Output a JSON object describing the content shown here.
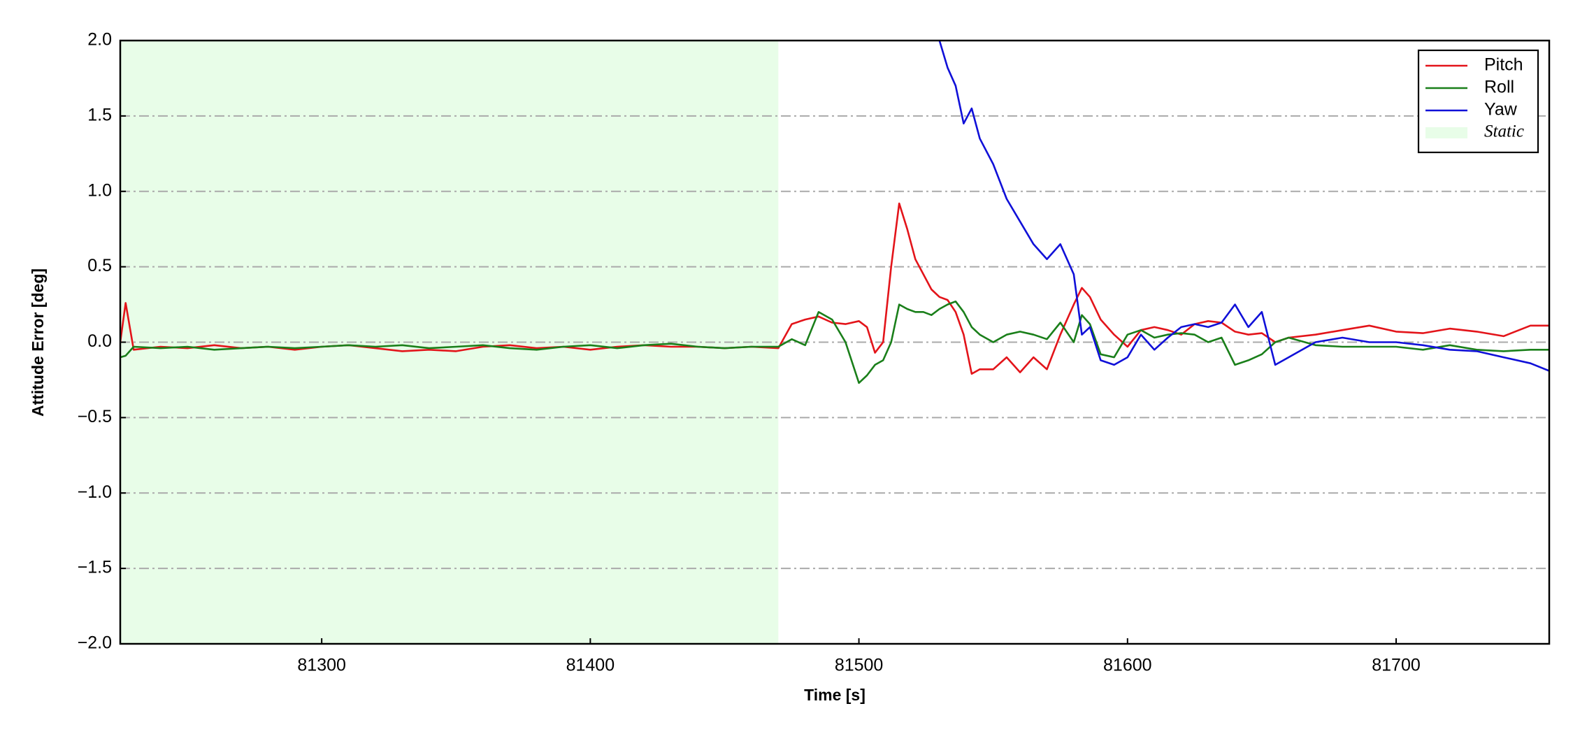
{
  "chart_data": {
    "type": "line",
    "xlabel": "Time [s]",
    "ylabel": "Attitude Error [deg]",
    "x": [
      81225,
      81227,
      81230,
      81240,
      81250,
      81260,
      81270,
      81280,
      81290,
      81300,
      81310,
      81320,
      81330,
      81340,
      81350,
      81360,
      81370,
      81380,
      81390,
      81400,
      81410,
      81420,
      81430,
      81440,
      81450,
      81460,
      81470,
      81475,
      81480,
      81485,
      81490,
      81495,
      81500,
      81503,
      81506,
      81509,
      81512,
      81515,
      81518,
      81521,
      81524,
      81527,
      81530,
      81533,
      81536,
      81539,
      81542,
      81545,
      81550,
      81555,
      81560,
      81565,
      81570,
      81575,
      81580,
      81583,
      81586,
      81590,
      81595,
      81600,
      81605,
      81610,
      81615,
      81620,
      81625,
      81630,
      81635,
      81640,
      81645,
      81650,
      81655,
      81660,
      81670,
      81680,
      81690,
      81700,
      81710,
      81720,
      81730,
      81740,
      81750,
      81757
    ],
    "series": [
      {
        "name": "Pitch",
        "color": "#e3141a",
        "values": [
          0.0,
          0.26,
          -0.05,
          -0.03,
          -0.04,
          -0.02,
          -0.04,
          -0.03,
          -0.05,
          -0.03,
          -0.02,
          -0.04,
          -0.06,
          -0.05,
          -0.06,
          -0.03,
          -0.02,
          -0.04,
          -0.03,
          -0.05,
          -0.03,
          -0.02,
          -0.03,
          -0.03,
          -0.04,
          -0.03,
          -0.04,
          0.12,
          0.15,
          0.17,
          0.13,
          0.12,
          0.14,
          0.1,
          -0.07,
          0.0,
          0.5,
          0.92,
          0.75,
          0.55,
          0.45,
          0.35,
          0.3,
          0.28,
          0.2,
          0.05,
          -0.21,
          -0.18,
          -0.18,
          -0.1,
          -0.2,
          -0.1,
          -0.18,
          0.05,
          0.25,
          0.36,
          0.3,
          0.15,
          0.05,
          -0.03,
          0.08,
          0.1,
          0.08,
          0.05,
          0.12,
          0.14,
          0.13,
          0.07,
          0.05,
          0.06,
          0.0,
          0.03,
          0.05,
          0.08,
          0.11,
          0.07,
          0.06,
          0.09,
          0.07,
          0.04,
          0.11,
          0.11
        ]
      },
      {
        "name": "Roll",
        "color": "#1a7f1a",
        "values": [
          -0.1,
          -0.09,
          -0.03,
          -0.04,
          -0.03,
          -0.05,
          -0.04,
          -0.03,
          -0.04,
          -0.03,
          -0.02,
          -0.03,
          -0.02,
          -0.04,
          -0.03,
          -0.02,
          -0.04,
          -0.05,
          -0.03,
          -0.02,
          -0.04,
          -0.02,
          -0.01,
          -0.03,
          -0.04,
          -0.03,
          -0.03,
          0.02,
          -0.02,
          0.2,
          0.15,
          0.0,
          -0.27,
          -0.22,
          -0.15,
          -0.12,
          0.0,
          0.25,
          0.22,
          0.2,
          0.2,
          0.18,
          0.22,
          0.25,
          0.27,
          0.2,
          0.1,
          0.05,
          0.0,
          0.05,
          0.07,
          0.05,
          0.02,
          0.13,
          0.0,
          0.18,
          0.12,
          -0.08,
          -0.1,
          0.05,
          0.08,
          0.03,
          0.05,
          0.06,
          0.05,
          0.0,
          0.03,
          -0.15,
          -0.12,
          -0.08,
          0.0,
          0.03,
          -0.02,
          -0.03,
          -0.03,
          -0.03,
          -0.05,
          -0.02,
          -0.05,
          -0.06,
          -0.05,
          -0.05
        ]
      },
      {
        "name": "Yaw",
        "color": "#1010d8",
        "values": [
          null,
          null,
          null,
          null,
          null,
          null,
          null,
          null,
          null,
          null,
          null,
          null,
          null,
          null,
          null,
          null,
          null,
          null,
          null,
          null,
          null,
          null,
          null,
          null,
          null,
          null,
          null,
          null,
          null,
          null,
          null,
          null,
          null,
          null,
          null,
          null,
          null,
          null,
          null,
          null,
          null,
          null,
          2.0,
          1.82,
          1.7,
          1.45,
          1.55,
          1.35,
          1.18,
          0.95,
          0.8,
          0.65,
          0.55,
          0.65,
          0.45,
          0.05,
          0.1,
          -0.12,
          -0.15,
          -0.1,
          0.05,
          -0.05,
          0.03,
          0.1,
          0.12,
          0.1,
          0.13,
          0.25,
          0.1,
          0.2,
          -0.15,
          -0.1,
          0.0,
          0.03,
          0.0,
          0.0,
          -0.02,
          -0.05,
          -0.06,
          -0.1,
          -0.14,
          -0.19
        ]
      }
    ],
    "spans": [
      {
        "name": "Static",
        "x": [
          81225,
          81470
        ],
        "color": "#e8fde8"
      }
    ],
    "xlim": [
      81225,
      81757
    ],
    "xticks": [
      81300,
      81400,
      81500,
      81600,
      81700
    ],
    "ylim": [
      -2,
      2
    ],
    "yticks": [
      {
        "value": -2,
        "label": "−2.0"
      },
      {
        "value": -1.5,
        "label": "−1.5"
      },
      {
        "value": -1,
        "label": "−1.0"
      },
      {
        "value": -0.5,
        "label": "−0.5"
      },
      {
        "value": 0,
        "label": "0.0"
      },
      0.5,
      {
        "value": 1,
        "label": "1.0"
      },
      1.5,
      {
        "value": 2,
        "label": "2.0"
      }
    ],
    "grid": true,
    "legend": "upper right"
  }
}
